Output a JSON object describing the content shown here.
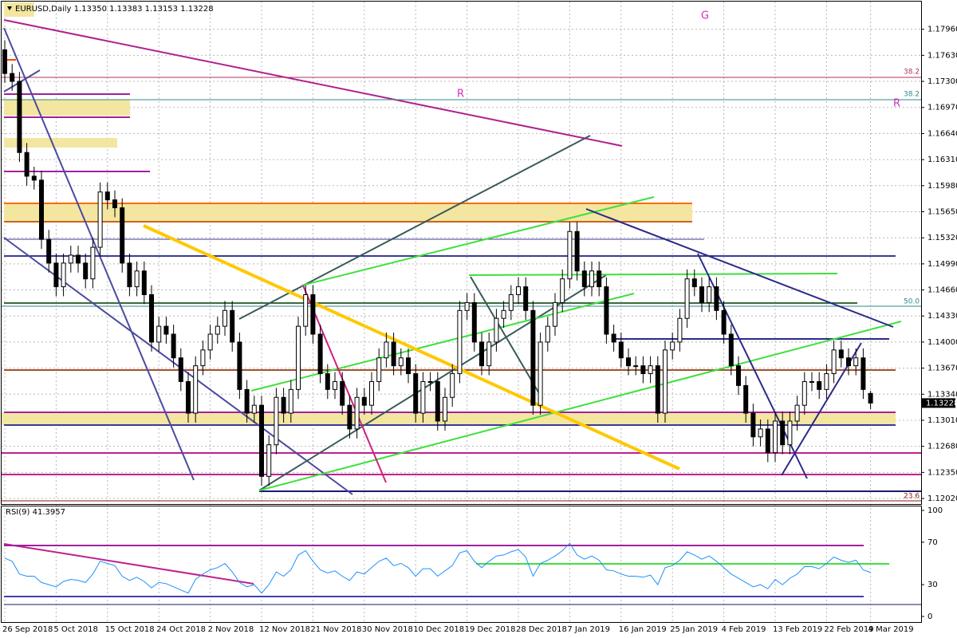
{
  "chart_data": [
    {
      "type": "candlestick",
      "title": "EURUSD,Daily  1.13350 1.13383 1.13153 1.13228",
      "x_labels": [
        "26 Sep 2018",
        "5 Oct 2018",
        "15 Oct 2018",
        "24 Oct 2018",
        "2 Nov 2018",
        "12 Nov 2018",
        "21 Nov 2018",
        "30 Nov 2018",
        "10 Dec 2018",
        "19 Dec 2018",
        "28 Dec 2018",
        "7 Jan 2019",
        "16 Jan 2019",
        "25 Jan 2019",
        "4 Feb 2019",
        "13 Feb 2019",
        "22 Feb 2019",
        "4 Mar 2019"
      ],
      "open": [
        1.177,
        1.174,
        1.173,
        1.164,
        1.161,
        1.1605,
        1.153,
        1.15,
        1.147,
        1.15,
        1.151,
        1.15,
        1.148,
        1.152,
        1.159,
        1.158,
        1.157,
        1.15,
        1.147,
        1.149,
        1.146,
        1.14,
        1.142,
        1.141,
        1.138,
        1.135,
        1.131,
        1.137,
        1.139,
        1.141,
        1.142,
        1.144,
        1.14,
        1.134,
        1.131,
        1.132,
        1.123,
        1.127,
        1.133,
        1.131,
        1.134,
        1.142,
        1.146,
        1.141,
        1.136,
        1.134,
        1.135,
        1.132,
        1.129,
        1.133,
        1.132,
        1.135,
        1.138,
        1.14,
        1.137,
        1.138,
        1.136,
        1.131,
        1.135,
        1.135,
        1.13,
        1.133,
        1.136,
        1.144,
        1.145,
        1.14,
        1.137,
        1.14,
        1.143,
        1.144,
        1.146,
        1.147,
        1.144,
        1.132,
        1.14,
        1.142,
        1.145,
        1.148,
        1.154,
        1.149,
        1.147,
        1.149,
        1.147,
        1.141,
        1.14,
        1.138,
        1.137,
        1.137,
        1.136,
        1.137,
        1.131,
        1.139,
        1.14,
        1.143,
        1.148,
        1.147,
        1.145,
        1.147,
        1.144,
        1.141,
        1.137,
        1.1345,
        1.131,
        1.128,
        1.129,
        1.126,
        1.13,
        1.127,
        1.13,
        1.132,
        1.135,
        1.135,
        1.134,
        1.136,
        1.139,
        1.138,
        1.137,
        1.138,
        1.1335
      ],
      "high": [
        1.1782,
        1.1752,
        1.1742,
        1.1652,
        1.1622,
        1.1617,
        1.1542,
        1.1512,
        1.1512,
        1.1522,
        1.1522,
        1.1512,
        1.1532,
        1.1602,
        1.1602,
        1.1592,
        1.1582,
        1.1512,
        1.1502,
        1.1502,
        1.1472,
        1.1432,
        1.1432,
        1.1422,
        1.1392,
        1.1362,
        1.1382,
        1.1402,
        1.1422,
        1.1432,
        1.1452,
        1.1452,
        1.1412,
        1.1352,
        1.1332,
        1.1332,
        1.1282,
        1.1342,
        1.1342,
        1.1352,
        1.1432,
        1.1472,
        1.1472,
        1.1422,
        1.1372,
        1.1362,
        1.1362,
        1.1332,
        1.1342,
        1.1342,
        1.1362,
        1.1392,
        1.1412,
        1.1412,
        1.1392,
        1.1392,
        1.1372,
        1.1362,
        1.1362,
        1.1362,
        1.1342,
        1.1372,
        1.1452,
        1.1462,
        1.1462,
        1.1412,
        1.1412,
        1.1442,
        1.1452,
        1.1472,
        1.1482,
        1.1482,
        1.1452,
        1.1412,
        1.1432,
        1.1462,
        1.1492,
        1.1552,
        1.1552,
        1.1502,
        1.1502,
        1.1502,
        1.1482,
        1.1422,
        1.1412,
        1.1392,
        1.1382,
        1.1382,
        1.1382,
        1.1382,
        1.1402,
        1.1412,
        1.1442,
        1.1492,
        1.1492,
        1.1482,
        1.1482,
        1.1482,
        1.1452,
        1.1422,
        1.1382,
        1.1357,
        1.1322,
        1.1302,
        1.1302,
        1.1312,
        1.1312,
        1.1312,
        1.1332,
        1.1362,
        1.1362,
        1.1362,
        1.1372,
        1.1402,
        1.1402,
        1.1392,
        1.1392,
        1.1392,
        1.13383
      ],
      "low": [
        1.1728,
        1.1718,
        1.1628,
        1.1598,
        1.1593,
        1.1518,
        1.1488,
        1.1458,
        1.1458,
        1.1488,
        1.1488,
        1.1468,
        1.1468,
        1.1508,
        1.1568,
        1.1558,
        1.1488,
        1.1458,
        1.1458,
        1.1448,
        1.1388,
        1.1388,
        1.1398,
        1.1368,
        1.1338,
        1.1298,
        1.1298,
        1.1358,
        1.1378,
        1.1398,
        1.1408,
        1.1388,
        1.1328,
        1.1298,
        1.1298,
        1.1218,
        1.1218,
        1.1258,
        1.1298,
        1.1298,
        1.1328,
        1.1408,
        1.1398,
        1.1348,
        1.1328,
        1.1328,
        1.1308,
        1.1278,
        1.1278,
        1.1308,
        1.1308,
        1.1338,
        1.1368,
        1.1358,
        1.1358,
        1.1348,
        1.1298,
        1.1298,
        1.1338,
        1.1288,
        1.1288,
        1.1318,
        1.1348,
        1.1428,
        1.1388,
        1.1358,
        1.1358,
        1.1388,
        1.1418,
        1.1428,
        1.1448,
        1.1428,
        1.1308,
        1.1308,
        1.1388,
        1.1408,
        1.1438,
        1.1468,
        1.1478,
        1.1458,
        1.1458,
        1.1458,
        1.1398,
        1.1388,
        1.1368,
        1.1358,
        1.1358,
        1.1348,
        1.1348,
        1.1298,
        1.1298,
        1.1378,
        1.1388,
        1.1418,
        1.1458,
        1.1438,
        1.1438,
        1.1428,
        1.1398,
        1.1358,
        1.1333,
        1.1298,
        1.1268,
        1.1268,
        1.1248,
        1.1248,
        1.1258,
        1.1258,
        1.1288,
        1.1308,
        1.1338,
        1.1328,
        1.1328,
        1.1348,
        1.1368,
        1.1358,
        1.1358,
        1.1328,
        1.13153
      ],
      "close": [
        1.174,
        1.173,
        1.164,
        1.161,
        1.1605,
        1.153,
        1.15,
        1.147,
        1.15,
        1.151,
        1.15,
        1.148,
        1.152,
        1.159,
        1.158,
        1.157,
        1.15,
        1.147,
        1.149,
        1.146,
        1.14,
        1.142,
        1.141,
        1.138,
        1.135,
        1.131,
        1.137,
        1.139,
        1.141,
        1.142,
        1.144,
        1.14,
        1.134,
        1.131,
        1.132,
        1.123,
        1.127,
        1.133,
        1.131,
        1.134,
        1.142,
        1.146,
        1.141,
        1.136,
        1.134,
        1.135,
        1.132,
        1.129,
        1.133,
        1.132,
        1.135,
        1.138,
        1.14,
        1.137,
        1.138,
        1.136,
        1.131,
        1.135,
        1.135,
        1.13,
        1.133,
        1.136,
        1.144,
        1.145,
        1.14,
        1.137,
        1.14,
        1.143,
        1.144,
        1.146,
        1.147,
        1.144,
        1.132,
        1.14,
        1.142,
        1.145,
        1.148,
        1.154,
        1.149,
        1.147,
        1.149,
        1.147,
        1.141,
        1.14,
        1.138,
        1.137,
        1.137,
        1.136,
        1.137,
        1.131,
        1.139,
        1.14,
        1.143,
        1.148,
        1.147,
        1.145,
        1.147,
        1.144,
        1.141,
        1.137,
        1.1345,
        1.131,
        1.128,
        1.129,
        1.126,
        1.13,
        1.127,
        1.13,
        1.132,
        1.135,
        1.135,
        1.134,
        1.136,
        1.139,
        1.138,
        1.137,
        1.138,
        1.134,
        1.13228
      ],
      "up_color": "#ffffff",
      "down_color": "#000000",
      "ylim": [
        1.1197,
        1.1829
      ],
      "yticks": [
        {
          "value": 1.1796,
          "label": "1.17960"
        },
        {
          "value": 1.1763,
          "label": "1.17630"
        },
        {
          "value": 1.173,
          "label": "1.17300"
        },
        {
          "value": 1.1697,
          "label": "1.16970"
        },
        {
          "value": 1.1664,
          "label": "1.16640"
        },
        {
          "value": 1.1631,
          "label": "1.16310"
        },
        {
          "value": 1.1598,
          "label": "1.15980"
        },
        {
          "value": 1.1565,
          "label": "1.15650"
        },
        {
          "value": 1.1532,
          "label": "1.15320"
        },
        {
          "value": 1.1499,
          "label": "1.14990"
        },
        {
          "value": 1.1466,
          "label": "1.14660"
        },
        {
          "value": 1.1433,
          "label": "1.14330"
        },
        {
          "value": 1.14,
          "label": "1.14000"
        },
        {
          "value": 1.1367,
          "label": "1.13670"
        },
        {
          "value": 1.1334,
          "label": "1.13340"
        },
        {
          "value": 1.1301,
          "label": "1.13010"
        },
        {
          "value": 1.1268,
          "label": "1.12680"
        },
        {
          "value": 1.1235,
          "label": "1.12350"
        },
        {
          "value": 1.1202,
          "label": "1.12020"
        }
      ],
      "grid": true,
      "annotations": [
        "38.2",
        "38.2",
        "50.0",
        "23.6",
        "R",
        "R",
        "G"
      ]
    },
    {
      "type": "line",
      "title": "RSI(9) 41.3957",
      "values": [
        55,
        52,
        40,
        38,
        38,
        32,
        30,
        28,
        33,
        35,
        34,
        32,
        40,
        52,
        50,
        48,
        38,
        34,
        37,
        33,
        27,
        32,
        31,
        28,
        25,
        22,
        35,
        40,
        44,
        46,
        50,
        42,
        32,
        28,
        30,
        22,
        30,
        42,
        38,
        44,
        58,
        62,
        52,
        44,
        41,
        43,
        38,
        34,
        42,
        40,
        46,
        52,
        55,
        48,
        50,
        46,
        38,
        45,
        45,
        38,
        43,
        48,
        60,
        62,
        52,
        46,
        52,
        57,
        58,
        61,
        63,
        56,
        38,
        50,
        53,
        57,
        62,
        69,
        58,
        54,
        57,
        53,
        44,
        43,
        40,
        38,
        38,
        37,
        39,
        30,
        46,
        48,
        53,
        61,
        58,
        54,
        57,
        52,
        46,
        40,
        36,
        32,
        28,
        30,
        26,
        35,
        30,
        36,
        40,
        47,
        47,
        45,
        50,
        56,
        53,
        51,
        53,
        44,
        41.3957
      ],
      "color": "#1e90ff",
      "ylim": [
        0,
        100
      ],
      "yticks": [
        0,
        30,
        70,
        100
      ],
      "grid": true
    }
  ]
}
